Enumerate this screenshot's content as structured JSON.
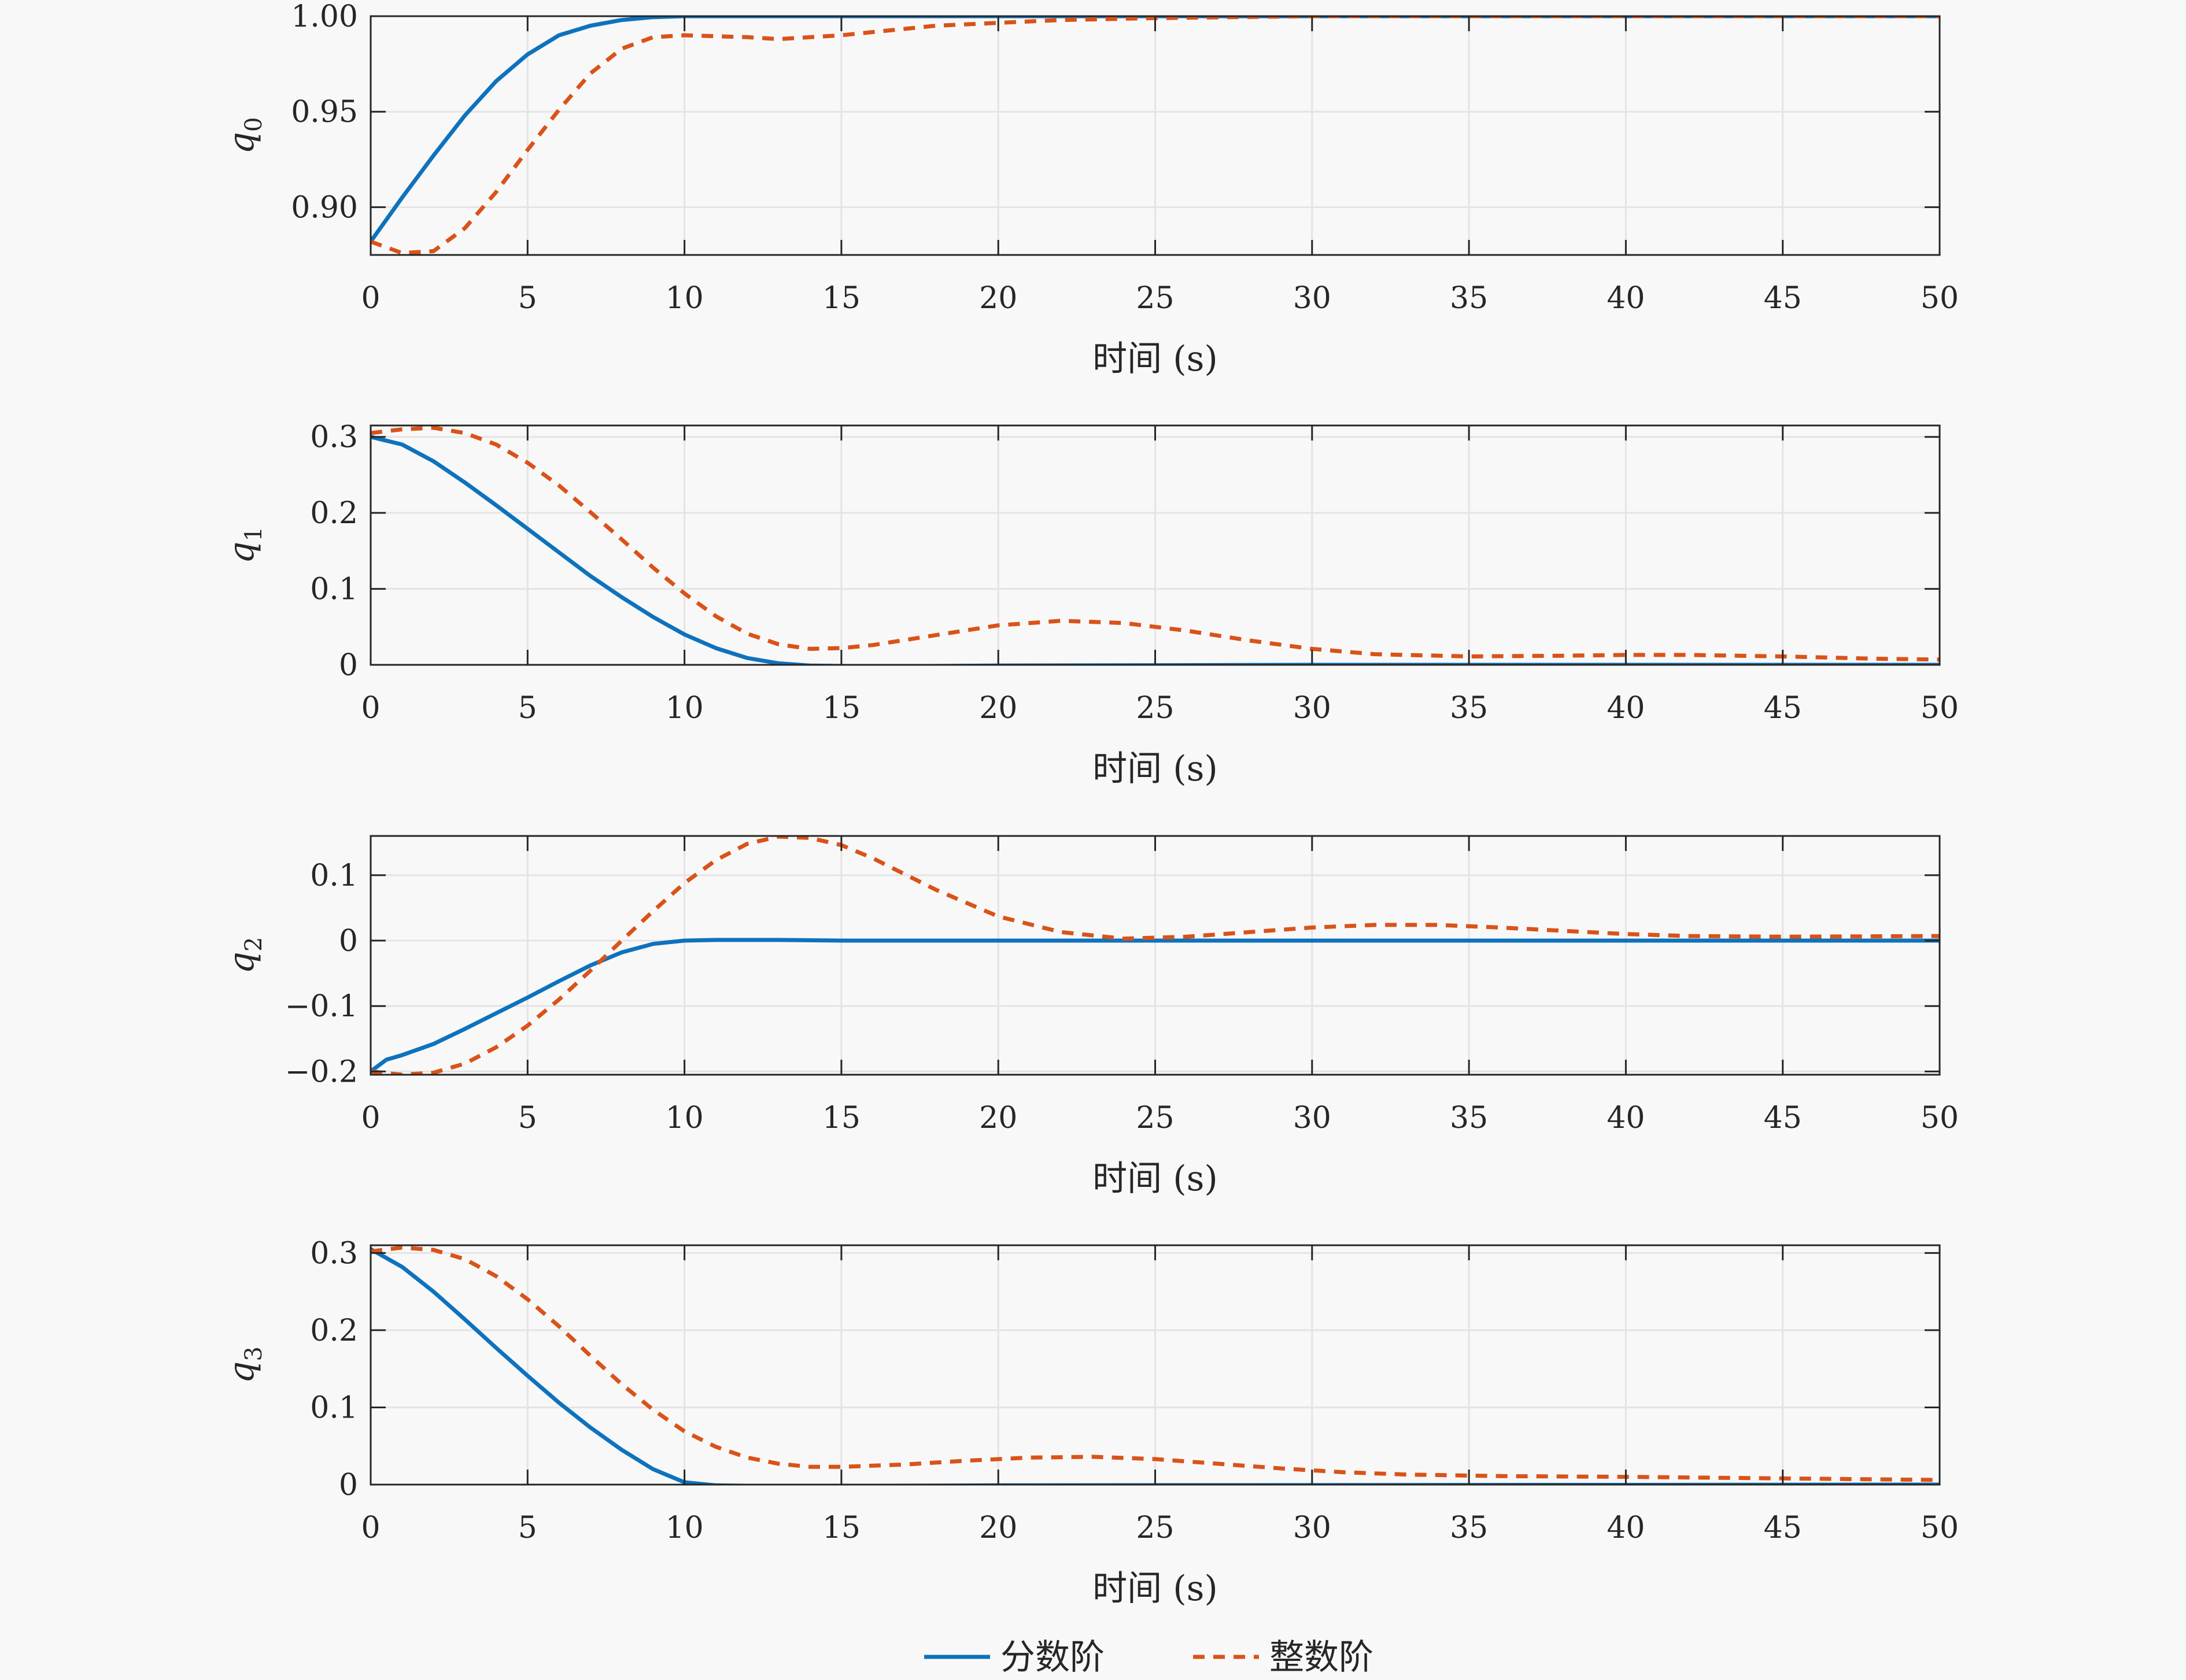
{
  "colors": {
    "background": "#f8f8f8",
    "axes_bg": "#f8f8f8",
    "frame": "#262626",
    "grid": "#e4e4e4",
    "series_fractional": "#0e72bd",
    "series_integer": "#d95319"
  },
  "legend": {
    "placement": "bottom-center",
    "items": [
      {
        "label": "分数阶",
        "style": "solid",
        "color": "#0e72bd"
      },
      {
        "label": "整数阶",
        "style": "dashed",
        "color": "#d95319"
      }
    ]
  },
  "chart_data": [
    {
      "type": "line",
      "xlabel": "时间 (s)",
      "ylabel": "q",
      "ylabel_sub": "0",
      "xlim": [
        0,
        50
      ],
      "ylim": [
        0.875,
        1.0
      ],
      "xticks": [
        "0",
        "5",
        "10",
        "15",
        "20",
        "25",
        "30",
        "35",
        "40",
        "45",
        "50"
      ],
      "yticks": [
        {
          "v": 0.9,
          "t": "0.90"
        },
        {
          "v": 0.95,
          "t": "0.95"
        },
        {
          "v": 1.0,
          "t": "1.00"
        }
      ],
      "grid": true,
      "series": [
        {
          "name": "分数阶",
          "points": [
            [
              0,
              0.882
            ],
            [
              1,
              0.905
            ],
            [
              2,
              0.927
            ],
            [
              3,
              0.948
            ],
            [
              4,
              0.966
            ],
            [
              5,
              0.98
            ],
            [
              6,
              0.99
            ],
            [
              7,
              0.995
            ],
            [
              8,
              0.998
            ],
            [
              9,
              0.9995
            ],
            [
              10,
              1.0
            ],
            [
              50,
              1.0
            ]
          ]
        },
        {
          "name": "整数阶",
          "points": [
            [
              0,
              0.882
            ],
            [
              1,
              0.876
            ],
            [
              2,
              0.877
            ],
            [
              3,
              0.889
            ],
            [
              4,
              0.908
            ],
            [
              5,
              0.93
            ],
            [
              6,
              0.951
            ],
            [
              7,
              0.97
            ],
            [
              8,
              0.983
            ],
            [
              9,
              0.989
            ],
            [
              10,
              0.99
            ],
            [
              12,
              0.989
            ],
            [
              13,
              0.988
            ],
            [
              15,
              0.99
            ],
            [
              18,
              0.995
            ],
            [
              22,
              0.998
            ],
            [
              25,
              0.999
            ],
            [
              30,
              1.0
            ],
            [
              50,
              1.0
            ]
          ]
        }
      ]
    },
    {
      "type": "line",
      "xlabel": "时间 (s)",
      "ylabel": "q",
      "ylabel_sub": "1",
      "xlim": [
        0,
        50
      ],
      "ylim": [
        0,
        0.315
      ],
      "xticks": [
        "0",
        "5",
        "10",
        "15",
        "20",
        "25",
        "30",
        "35",
        "40",
        "45",
        "50"
      ],
      "yticks": [
        {
          "v": 0,
          "t": "0"
        },
        {
          "v": 0.1,
          "t": "0.1"
        },
        {
          "v": 0.2,
          "t": "0.2"
        },
        {
          "v": 0.3,
          "t": "0.3"
        }
      ],
      "grid": true,
      "series": [
        {
          "name": "分数阶",
          "points": [
            [
              0,
              0.3
            ],
            [
              1,
              0.29
            ],
            [
              2,
              0.268
            ],
            [
              3,
              0.24
            ],
            [
              4,
              0.21
            ],
            [
              5,
              0.179
            ],
            [
              6,
              0.148
            ],
            [
              7,
              0.117
            ],
            [
              8,
              0.089
            ],
            [
              9,
              0.063
            ],
            [
              10,
              0.04
            ],
            [
              11,
              0.022
            ],
            [
              12,
              0.009
            ],
            [
              13,
              0.002
            ],
            [
              14,
              -0.001
            ],
            [
              16,
              -0.002
            ],
            [
              20,
              -0.001
            ],
            [
              30,
              0.0
            ],
            [
              50,
              0.0
            ]
          ]
        },
        {
          "name": "整数阶",
          "points": [
            [
              0,
              0.305
            ],
            [
              1,
              0.31
            ],
            [
              2,
              0.312
            ],
            [
              3,
              0.305
            ],
            [
              4,
              0.29
            ],
            [
              5,
              0.266
            ],
            [
              6,
              0.236
            ],
            [
              7,
              0.201
            ],
            [
              8,
              0.165
            ],
            [
              9,
              0.128
            ],
            [
              10,
              0.094
            ],
            [
              11,
              0.064
            ],
            [
              12,
              0.041
            ],
            [
              13,
              0.027
            ],
            [
              14,
              0.021
            ],
            [
              15,
              0.022
            ],
            [
              16,
              0.026
            ],
            [
              18,
              0.039
            ],
            [
              20,
              0.052
            ],
            [
              22,
              0.058
            ],
            [
              24,
              0.055
            ],
            [
              26,
              0.045
            ],
            [
              28,
              0.032
            ],
            [
              30,
              0.021
            ],
            [
              32,
              0.014
            ],
            [
              35,
              0.011
            ],
            [
              38,
              0.012
            ],
            [
              40,
              0.013
            ],
            [
              42,
              0.013
            ],
            [
              45,
              0.011
            ],
            [
              48,
              0.008
            ],
            [
              50,
              0.007
            ]
          ]
        }
      ]
    },
    {
      "type": "line",
      "xlabel": "时间 (s)",
      "ylabel": "q",
      "ylabel_sub": "2",
      "xlim": [
        0,
        50
      ],
      "ylim": [
        -0.205,
        0.16
      ],
      "xticks": [
        "0",
        "5",
        "10",
        "15",
        "20",
        "25",
        "30",
        "35",
        "40",
        "45",
        "50"
      ],
      "yticks": [
        {
          "v": -0.2,
          "t": "−0.2"
        },
        {
          "v": -0.1,
          "t": "−0.1"
        },
        {
          "v": 0,
          "t": "0"
        },
        {
          "v": 0.1,
          "t": "0.1"
        }
      ],
      "grid": true,
      "series": [
        {
          "name": "分数阶",
          "points": [
            [
              0,
              -0.2
            ],
            [
              0.5,
              -0.182
            ],
            [
              1,
              -0.175
            ],
            [
              2,
              -0.158
            ],
            [
              3,
              -0.135
            ],
            [
              4,
              -0.111
            ],
            [
              5,
              -0.087
            ],
            [
              6,
              -0.062
            ],
            [
              7,
              -0.038
            ],
            [
              8,
              -0.018
            ],
            [
              9,
              -0.005
            ],
            [
              10,
              0.0
            ],
            [
              11,
              0.001
            ],
            [
              13,
              0.001
            ],
            [
              15,
              0.0
            ],
            [
              50,
              0.0
            ]
          ]
        },
        {
          "name": "整数阶",
          "points": [
            [
              0,
              -0.2
            ],
            [
              1,
              -0.205
            ],
            [
              2,
              -0.202
            ],
            [
              3,
              -0.188
            ],
            [
              4,
              -0.163
            ],
            [
              5,
              -0.13
            ],
            [
              6,
              -0.09
            ],
            [
              7,
              -0.046
            ],
            [
              8,
              0.0
            ],
            [
              9,
              0.045
            ],
            [
              10,
              0.088
            ],
            [
              11,
              0.123
            ],
            [
              12,
              0.148
            ],
            [
              13,
              0.159
            ],
            [
              14,
              0.157
            ],
            [
              15,
              0.146
            ],
            [
              16,
              0.126
            ],
            [
              18,
              0.078
            ],
            [
              20,
              0.037
            ],
            [
              22,
              0.013
            ],
            [
              24,
              0.003
            ],
            [
              26,
              0.006
            ],
            [
              28,
              0.013
            ],
            [
              30,
              0.02
            ],
            [
              32,
              0.024
            ],
            [
              34,
              0.024
            ],
            [
              36,
              0.02
            ],
            [
              38,
              0.015
            ],
            [
              40,
              0.01
            ],
            [
              42,
              0.007
            ],
            [
              45,
              0.006
            ],
            [
              50,
              0.007
            ]
          ]
        }
      ]
    },
    {
      "type": "line",
      "xlabel": "时间 (s)",
      "ylabel": "q",
      "ylabel_sub": "3",
      "xlim": [
        0,
        50
      ],
      "ylim": [
        0,
        0.31
      ],
      "xticks": [
        "0",
        "5",
        "10",
        "15",
        "20",
        "25",
        "30",
        "35",
        "40",
        "45",
        "50"
      ],
      "yticks": [
        {
          "v": 0,
          "t": "0"
        },
        {
          "v": 0.1,
          "t": "0.1"
        },
        {
          "v": 0.2,
          "t": "0.2"
        },
        {
          "v": 0.3,
          "t": "0.3"
        }
      ],
      "grid": true,
      "series": [
        {
          "name": "分数阶",
          "points": [
            [
              0,
              0.305
            ],
            [
              1,
              0.282
            ],
            [
              2,
              0.25
            ],
            [
              3,
              0.214
            ],
            [
              4,
              0.177
            ],
            [
              5,
              0.141
            ],
            [
              6,
              0.106
            ],
            [
              7,
              0.074
            ],
            [
              8,
              0.045
            ],
            [
              9,
              0.02
            ],
            [
              10,
              0.003
            ],
            [
              11,
              -0.001
            ],
            [
              13,
              -0.002
            ],
            [
              20,
              -0.001
            ],
            [
              50,
              0.0
            ]
          ]
        },
        {
          "name": "整数阶",
          "points": [
            [
              0,
              0.302
            ],
            [
              1,
              0.307
            ],
            [
              2,
              0.304
            ],
            [
              3,
              0.292
            ],
            [
              4,
              0.27
            ],
            [
              5,
              0.24
            ],
            [
              6,
              0.205
            ],
            [
              7,
              0.167
            ],
            [
              8,
              0.13
            ],
            [
              9,
              0.097
            ],
            [
              10,
              0.069
            ],
            [
              11,
              0.049
            ],
            [
              12,
              0.035
            ],
            [
              13,
              0.027
            ],
            [
              14,
              0.023
            ],
            [
              15,
              0.023
            ],
            [
              17,
              0.026
            ],
            [
              19,
              0.031
            ],
            [
              21,
              0.035
            ],
            [
              23,
              0.036
            ],
            [
              25,
              0.033
            ],
            [
              27,
              0.027
            ],
            [
              29,
              0.021
            ],
            [
              31,
              0.016
            ],
            [
              33,
              0.013
            ],
            [
              36,
              0.011
            ],
            [
              40,
              0.01
            ],
            [
              45,
              0.008
            ],
            [
              50,
              0.006
            ]
          ]
        }
      ]
    }
  ]
}
